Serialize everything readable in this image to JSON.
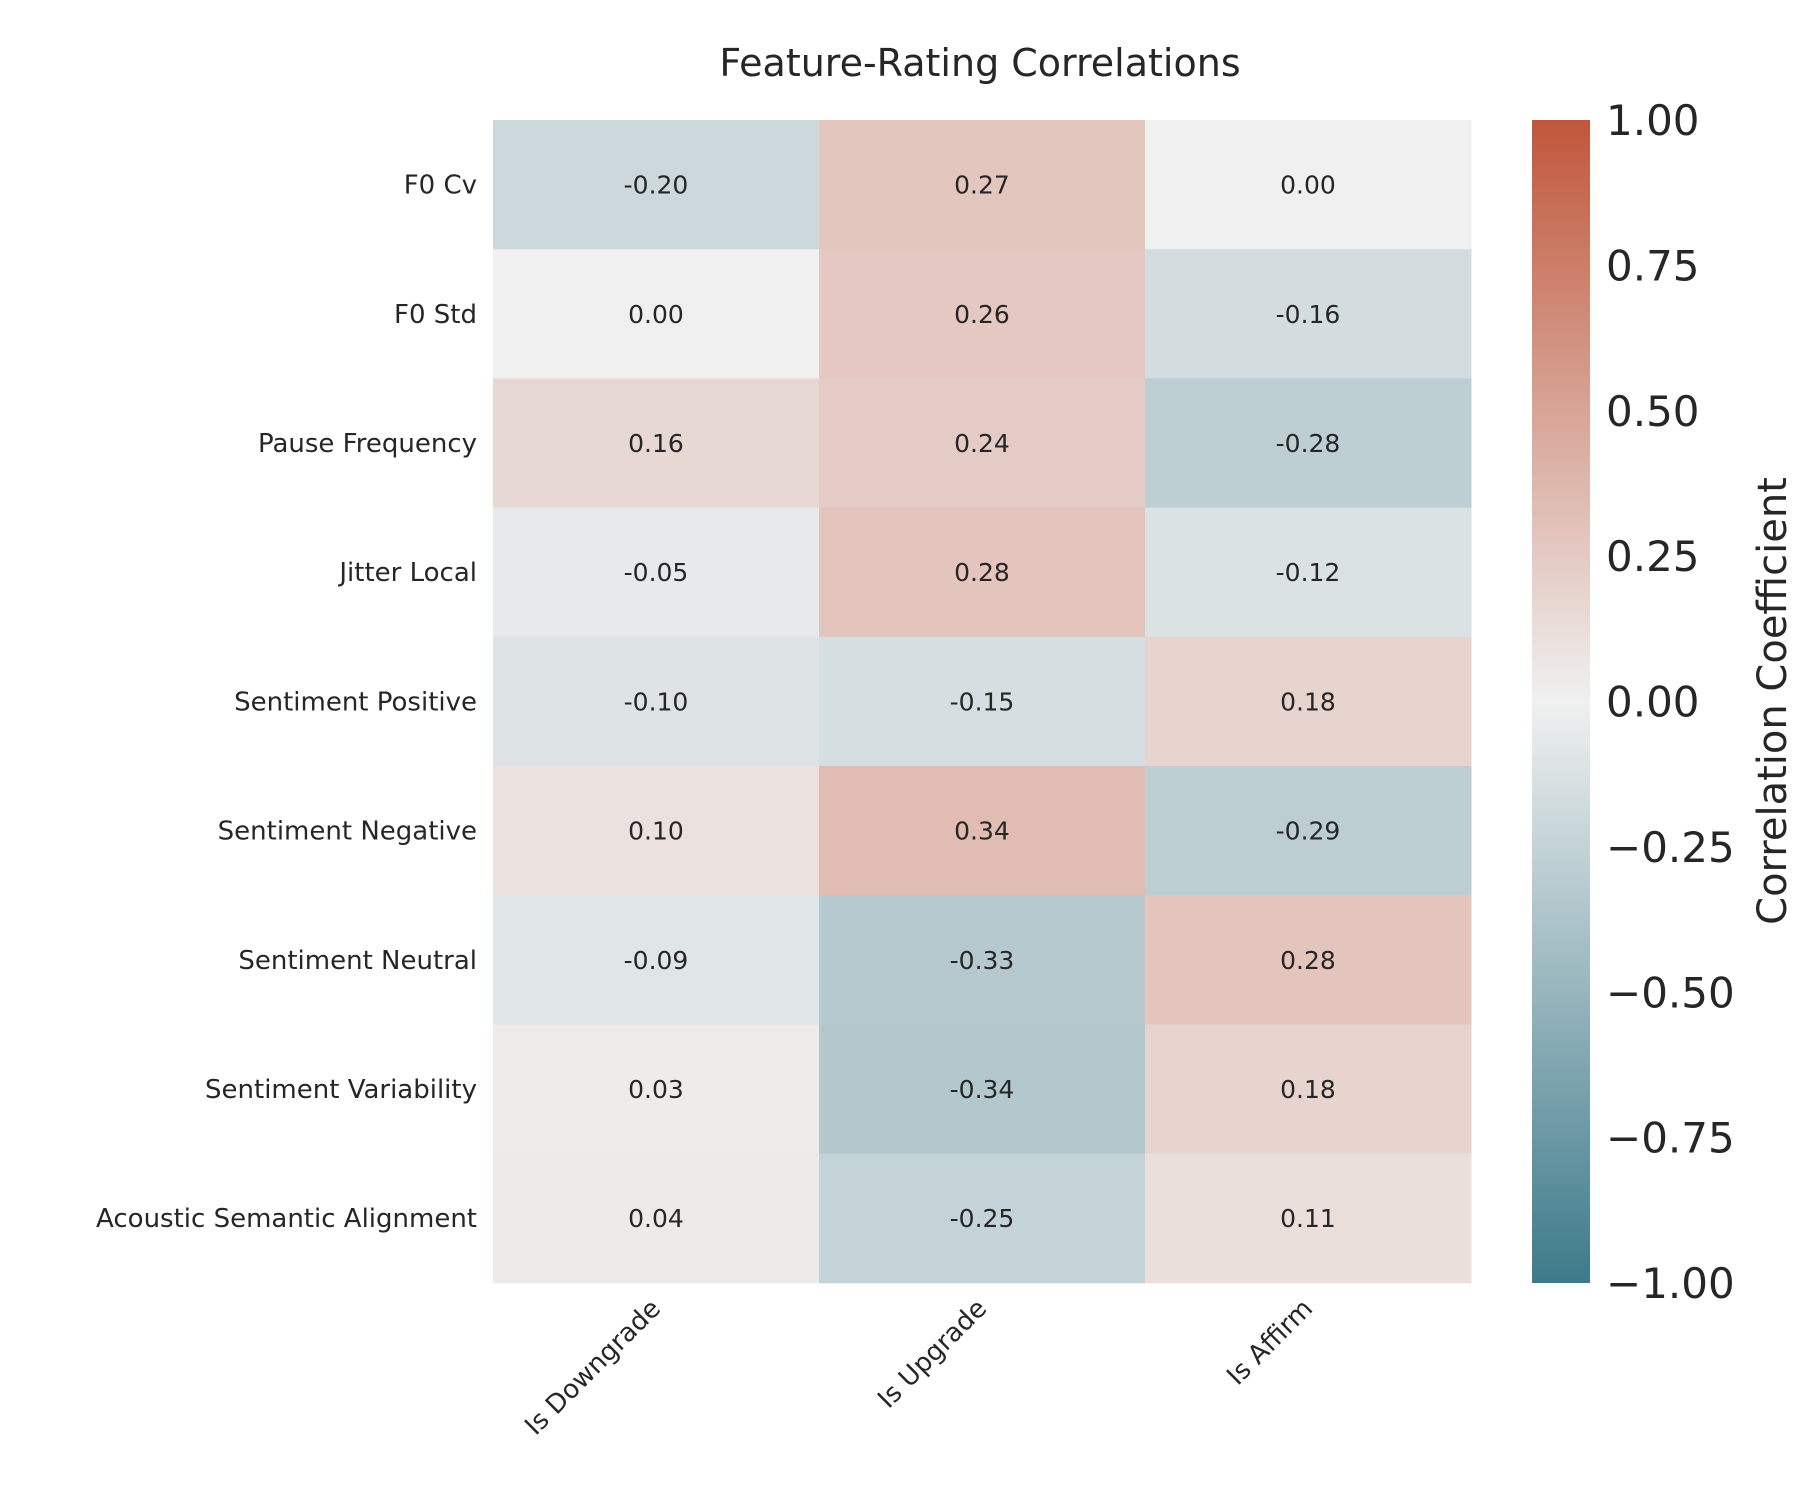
{
  "chart_data": {
    "type": "heatmap",
    "title": "Feature-Rating Correlations",
    "columns": [
      "Is Downgrade",
      "Is Upgrade",
      "Is Affirm"
    ],
    "rows": [
      "F0 Cv",
      "F0 Std",
      "Pause Frequency",
      "Jitter Local",
      "Sentiment Positive",
      "Sentiment Negative",
      "Sentiment Neutral",
      "Sentiment Variability",
      "Acoustic Semantic Alignment"
    ],
    "values": [
      [
        -0.2,
        0.27,
        0.0
      ],
      [
        0.0,
        0.26,
        -0.16
      ],
      [
        0.16,
        0.24,
        -0.28
      ],
      [
        -0.05,
        0.28,
        -0.12
      ],
      [
        -0.1,
        -0.15,
        0.18
      ],
      [
        0.1,
        0.34,
        -0.29
      ],
      [
        -0.09,
        -0.33,
        0.28
      ],
      [
        0.03,
        -0.34,
        0.18
      ],
      [
        0.04,
        -0.25,
        0.11
      ]
    ],
    "value_labels": [
      [
        "-0.20",
        "0.27",
        "0.00"
      ],
      [
        "0.00",
        "0.26",
        "-0.16"
      ],
      [
        "0.16",
        "0.24",
        "-0.28"
      ],
      [
        "-0.05",
        "0.28",
        "-0.12"
      ],
      [
        "-0.10",
        "-0.15",
        "0.18"
      ],
      [
        "0.10",
        "0.34",
        "-0.29"
      ],
      [
        "-0.09",
        "-0.33",
        "0.28"
      ],
      [
        "0.03",
        "-0.34",
        "0.18"
      ],
      [
        "0.04",
        "-0.25",
        "0.11"
      ]
    ],
    "colorbar": {
      "label": "Correlation Coefficient",
      "range": [
        -1,
        1
      ],
      "ticks": [
        "1.00",
        "0.75",
        "0.50",
        "0.25",
        "0.00",
        "−0.25",
        "−0.50",
        "−0.75",
        "−1.00"
      ],
      "tick_values": [
        1.0,
        0.75,
        0.5,
        0.25,
        0.0,
        -0.25,
        -0.5,
        -0.75,
        -1.0
      ],
      "colors": {
        "low": "#3d7a8a",
        "mid": "#f0f0f0",
        "high": "#c0573b"
      }
    },
    "grid": false
  }
}
